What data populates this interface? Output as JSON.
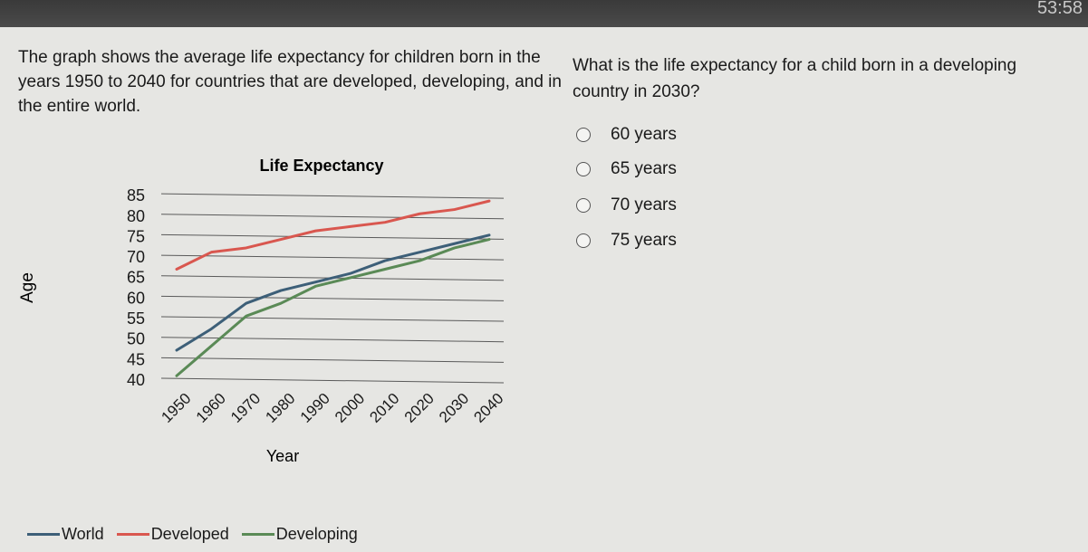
{
  "timer": "53:58",
  "passage": "The graph shows the average life expectancy for children born in the years 1950 to 2040 for countries that are developed, developing, and in the entire world.",
  "question": "What is the life expectancy for a child born in a developing country in 2030?",
  "options": [
    "60 years",
    "65 years",
    "70 years",
    "75 years"
  ],
  "colors": {
    "world": "#3d5f78",
    "developed": "#d9574f",
    "developing": "#5a8a56",
    "grid": "#5a5a5a"
  },
  "chart_data": {
    "type": "line",
    "title": "Life Expectancy",
    "xlabel": "Year",
    "ylabel": "Age",
    "x": [
      1950,
      1960,
      1970,
      1980,
      1990,
      2000,
      2010,
      2020,
      2030,
      2040
    ],
    "xticks": [
      "1950",
      "1960",
      "1970",
      "1980",
      "1990",
      "2000",
      "2010",
      "2020",
      "2030",
      "2040"
    ],
    "yticks": [
      "40",
      "45",
      "50",
      "55",
      "60",
      "65",
      "70",
      "75",
      "80",
      "85"
    ],
    "ylim": [
      40,
      85
    ],
    "grid": "horizontal",
    "legend_position": "bottom",
    "series": [
      {
        "name": "World",
        "key": "world",
        "values": [
          47,
          52,
          58,
          61,
          63,
          65,
          68,
          70,
          72,
          74
        ]
      },
      {
        "name": "Developed",
        "key": "developed",
        "values": [
          66,
          70,
          71,
          73,
          75,
          76,
          77,
          79,
          80,
          82
        ]
      },
      {
        "name": "Developing",
        "key": "developing",
        "values": [
          41,
          48,
          55,
          58,
          62,
          64,
          66,
          68,
          71,
          73
        ]
      }
    ]
  }
}
